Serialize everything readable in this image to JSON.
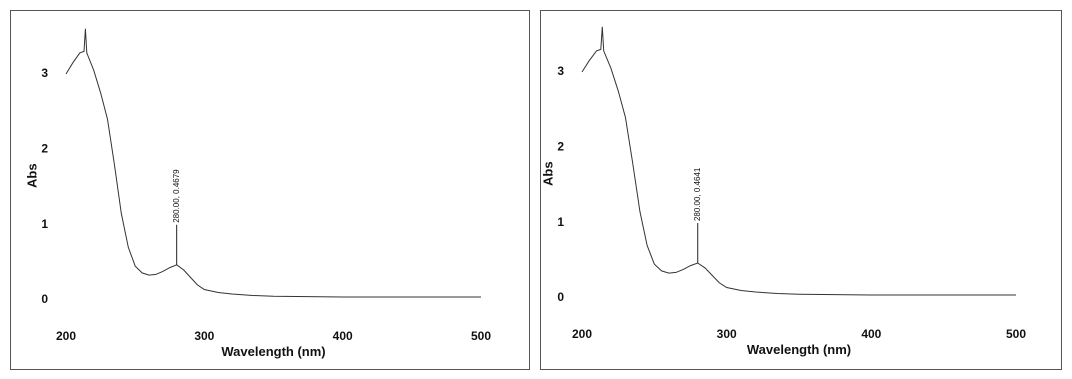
{
  "chart_data": [
    {
      "type": "line",
      "x_label": "Wavelength (nm)",
      "y_label": "Abs",
      "x": [
        200,
        205,
        210,
        213,
        214,
        215,
        220,
        225,
        230,
        235,
        240,
        245,
        250,
        255,
        260,
        265,
        270,
        275,
        280,
        285,
        290,
        295,
        300,
        310,
        320,
        335,
        350,
        375,
        400,
        450,
        500
      ],
      "values": [
        3.0,
        3.15,
        3.28,
        3.3,
        3.6,
        3.28,
        3.05,
        2.75,
        2.4,
        1.8,
        1.15,
        0.7,
        0.45,
        0.36,
        0.33,
        0.34,
        0.38,
        0.43,
        0.4679,
        0.4,
        0.3,
        0.2,
        0.14,
        0.1,
        0.08,
        0.06,
        0.05,
        0.045,
        0.04,
        0.04,
        0.04
      ],
      "color": "#333333",
      "xlim": [
        200,
        500
      ],
      "ylim": [
        -0.3,
        3.6
      ],
      "xticks": [
        200,
        300,
        400,
        500
      ],
      "yticks": [
        0,
        1,
        2,
        3
      ],
      "grid": false,
      "annotations": [
        {
          "text": "280.00, 0.4679",
          "x": 280,
          "y": 0.4679
        }
      ]
    },
    {
      "type": "line",
      "x_label": "Wavelength (nm)",
      "y_label": "Abs",
      "x": [
        200,
        205,
        210,
        213,
        214,
        215,
        220,
        225,
        230,
        235,
        240,
        245,
        250,
        255,
        260,
        265,
        270,
        275,
        280,
        285,
        290,
        295,
        300,
        310,
        320,
        335,
        350,
        375,
        400,
        450,
        500
      ],
      "values": [
        3.0,
        3.15,
        3.28,
        3.3,
        3.6,
        3.28,
        3.05,
        2.75,
        2.4,
        1.8,
        1.15,
        0.7,
        0.45,
        0.36,
        0.33,
        0.34,
        0.38,
        0.43,
        0.4641,
        0.4,
        0.3,
        0.2,
        0.14,
        0.1,
        0.08,
        0.06,
        0.05,
        0.045,
        0.04,
        0.04,
        0.04
      ],
      "color": "#333333",
      "xlim": [
        200,
        500
      ],
      "ylim": [
        -0.3,
        3.6
      ],
      "xticks": [
        200,
        300,
        400,
        500
      ],
      "yticks": [
        0,
        1,
        2,
        3
      ],
      "grid": false,
      "annotations": [
        {
          "text": "280.00, 0.4641",
          "x": 280,
          "y": 0.4641
        }
      ]
    }
  ]
}
